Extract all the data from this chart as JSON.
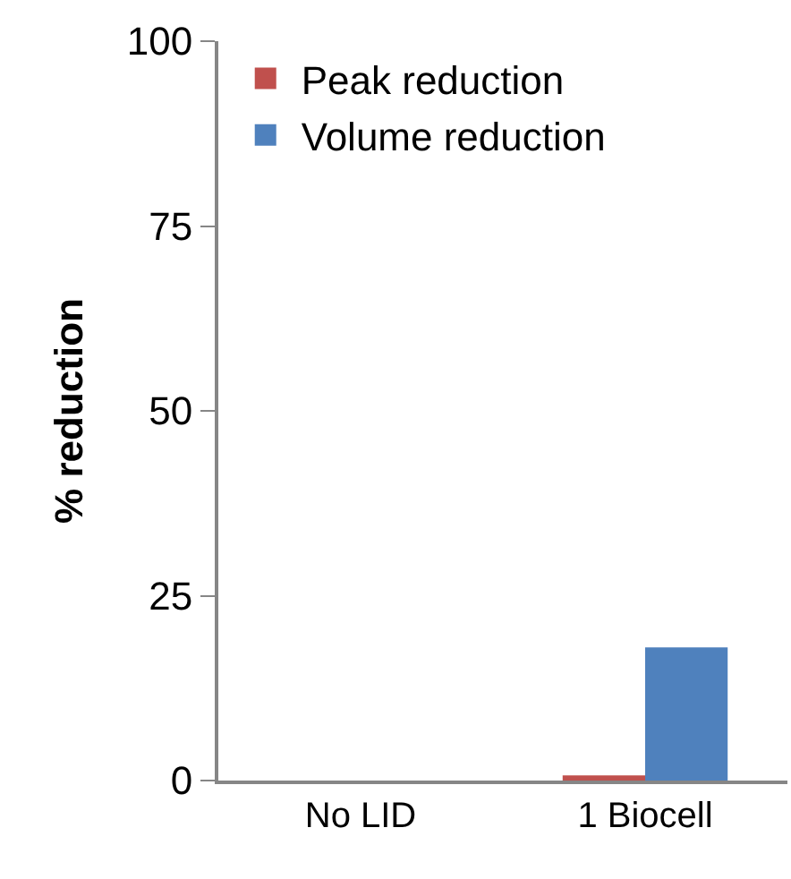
{
  "chart_data": {
    "type": "bar",
    "ylabel": "% reduction",
    "categories": [
      "No LID",
      "1 Biocell"
    ],
    "series": [
      {
        "name": "Peak reduction",
        "color": "#c0504d",
        "values": [
          0,
          0.7
        ]
      },
      {
        "name": "Volume reduction",
        "color": "#4f81bd",
        "values": [
          0,
          18
        ]
      }
    ],
    "ylim": [
      0,
      100
    ],
    "yticks": [
      0,
      25,
      50,
      75,
      100
    ],
    "grid": false,
    "legend": "top left"
  }
}
